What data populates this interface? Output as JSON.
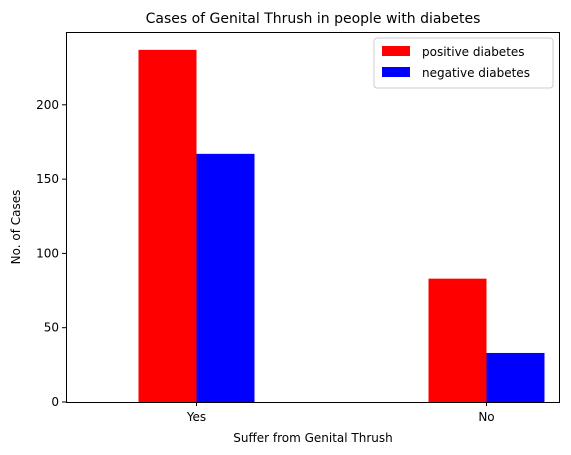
{
  "chart_data": {
    "type": "bar",
    "title": "Cases of Genital Thrush in people with diabetes",
    "xlabel": "Suffer from Genital Thrush",
    "ylabel": "No. of Cases",
    "categories": [
      "Yes",
      "No"
    ],
    "series": [
      {
        "name": "positive diabetes",
        "color": "#ff0000",
        "values": [
          237,
          83
        ]
      },
      {
        "name": "negative diabetes",
        "color": "#0000ff",
        "values": [
          167,
          33
        ]
      }
    ],
    "ylim": [
      0,
      249
    ],
    "yticks": [
      0,
      50,
      100,
      150,
      200
    ],
    "grid": false,
    "legend": "top-right"
  }
}
